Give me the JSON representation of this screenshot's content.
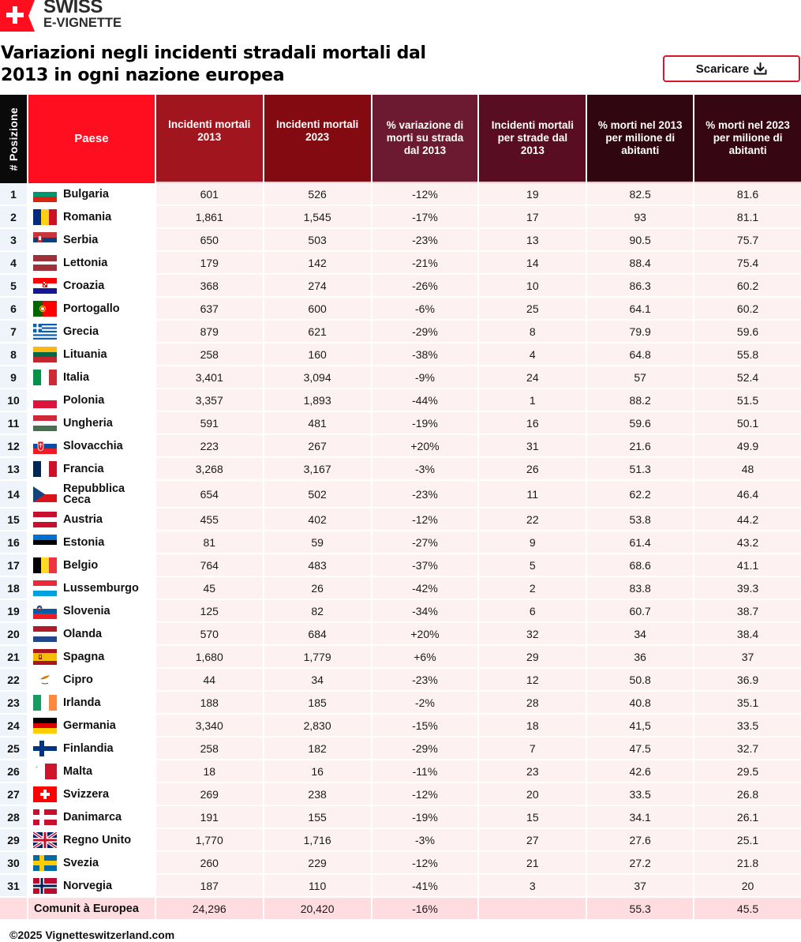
{
  "brand": {
    "line1": "SWISS",
    "line2": "E-VIGNETTE",
    "icon": "swiss-flag-icon",
    "color": "#ff0e1f"
  },
  "title": "Variazioni negli incidenti stradali mortali dal 2013 in ogni nazione europea",
  "download_button": {
    "label": "Scaricare",
    "icon": "download-icon",
    "border_color": "#e0142a"
  },
  "table": {
    "headers": [
      "# Posizione",
      "Paese",
      "Incidenti mortali 2013",
      "Incidenti mortali 2023",
      "% variazione di morti su strada dal 2013",
      "Incidenti mortali per strade dal 2013",
      "% morti nel 2013 per milione di abitanti",
      "% morti nel 2023 per milione di abitanti"
    ],
    "header_colors": [
      "#0a0a0a",
      "#ff0e1f",
      "#a1161e",
      "#830a10",
      "#6c1a31",
      "#580d22",
      "#300611",
      "#360613"
    ],
    "rows": [
      {
        "rank": "1",
        "country": "Bulgaria",
        "flag": "bg",
        "d2013": "601",
        "d2023": "526",
        "change": "-12%",
        "rank_change": "19",
        "pm2013": "82.5",
        "pm2023": "81.6"
      },
      {
        "rank": "2",
        "country": "Romania",
        "flag": "ro",
        "d2013": "1,861",
        "d2023": "1,545",
        "change": "-17%",
        "rank_change": "17",
        "pm2013": "93",
        "pm2023": "81.1"
      },
      {
        "rank": "3",
        "country": "Serbia",
        "flag": "rs",
        "d2013": "650",
        "d2023": "503",
        "change": "-23%",
        "rank_change": "13",
        "pm2013": "90.5",
        "pm2023": "75.7"
      },
      {
        "rank": "4",
        "country": "Lettonia",
        "flag": "lv",
        "d2013": "179",
        "d2023": "142",
        "change": "-21%",
        "rank_change": "14",
        "pm2013": "88.4",
        "pm2023": "75.4"
      },
      {
        "rank": "5",
        "country": "Croazia",
        "flag": "hr",
        "d2013": "368",
        "d2023": "274",
        "change": "-26%",
        "rank_change": "10",
        "pm2013": "86.3",
        "pm2023": "60.2"
      },
      {
        "rank": "6",
        "country": "Portogallo",
        "flag": "pt",
        "d2013": "637",
        "d2023": "600",
        "change": "-6%",
        "rank_change": "25",
        "pm2013": "64.1",
        "pm2023": "60.2"
      },
      {
        "rank": "7",
        "country": "Grecia",
        "flag": "gr",
        "d2013": "879",
        "d2023": "621",
        "change": "-29%",
        "rank_change": "8",
        "pm2013": "79.9",
        "pm2023": "59.6"
      },
      {
        "rank": "8",
        "country": "Lituania",
        "flag": "lt",
        "d2013": "258",
        "d2023": "160",
        "change": "-38%",
        "rank_change": "4",
        "pm2013": "64.8",
        "pm2023": "55.8"
      },
      {
        "rank": "9",
        "country": "Italia",
        "flag": "it",
        "d2013": "3,401",
        "d2023": "3,094",
        "change": "-9%",
        "rank_change": "24",
        "pm2013": "57",
        "pm2023": "52.4"
      },
      {
        "rank": "10",
        "country": "Polonia",
        "flag": "pl",
        "d2013": "3,357",
        "d2023": "1,893",
        "change": "-44%",
        "rank_change": "1",
        "pm2013": "88.2",
        "pm2023": "51.5"
      },
      {
        "rank": "11",
        "country": "Ungheria",
        "flag": "hu",
        "d2013": "591",
        "d2023": "481",
        "change": "-19%",
        "rank_change": "16",
        "pm2013": "59.6",
        "pm2023": "50.1"
      },
      {
        "rank": "12",
        "country": "Slovacchia",
        "flag": "sk",
        "d2013": "223",
        "d2023": "267",
        "change": "+20%",
        "rank_change": "31",
        "pm2013": "21.6",
        "pm2023": "49.9"
      },
      {
        "rank": "13",
        "country": "Francia",
        "flag": "fr",
        "d2013": "3,268",
        "d2023": "3,167",
        "change": "-3%",
        "rank_change": "26",
        "pm2013": "51.3",
        "pm2023": "48"
      },
      {
        "rank": "14",
        "country": "Repubblica Ceca",
        "flag": "cz",
        "d2013": "654",
        "d2023": "502",
        "change": "-23%",
        "rank_change": "11",
        "pm2013": "62.2",
        "pm2023": "46.4"
      },
      {
        "rank": "15",
        "country": "Austria",
        "flag": "at",
        "d2013": "455",
        "d2023": "402",
        "change": "-12%",
        "rank_change": "22",
        "pm2013": "53.8",
        "pm2023": "44.2"
      },
      {
        "rank": "16",
        "country": "Estonia",
        "flag": "ee",
        "d2013": "81",
        "d2023": "59",
        "change": "-27%",
        "rank_change": "9",
        "pm2013": "61.4",
        "pm2023": "43.2"
      },
      {
        "rank": "17",
        "country": "Belgio",
        "flag": "be",
        "d2013": "764",
        "d2023": "483",
        "change": "-37%",
        "rank_change": "5",
        "pm2013": "68.6",
        "pm2023": "41.1"
      },
      {
        "rank": "18",
        "country": "Lussemburgo",
        "flag": "lu",
        "d2013": "45",
        "d2023": "26",
        "change": "-42%",
        "rank_change": "2",
        "pm2013": "83.8",
        "pm2023": "39.3"
      },
      {
        "rank": "19",
        "country": "Slovenia",
        "flag": "si",
        "d2013": "125",
        "d2023": "82",
        "change": "-34%",
        "rank_change": "6",
        "pm2013": "60.7",
        "pm2023": "38.7"
      },
      {
        "rank": "20",
        "country": "Olanda",
        "flag": "nl",
        "d2013": "570",
        "d2023": "684",
        "change": "+20%",
        "rank_change": "32",
        "pm2013": "34",
        "pm2023": "38.4"
      },
      {
        "rank": "21",
        "country": "Spagna",
        "flag": "es",
        "d2013": "1,680",
        "d2023": "1,779",
        "change": "+6%",
        "rank_change": "29",
        "pm2013": "36",
        "pm2023": "37"
      },
      {
        "rank": "22",
        "country": "Cipro",
        "flag": "cy",
        "d2013": "44",
        "d2023": "34",
        "change": "-23%",
        "rank_change": "12",
        "pm2013": "50.8",
        "pm2023": "36.9"
      },
      {
        "rank": "23",
        "country": "Irlanda",
        "flag": "ie",
        "d2013": "188",
        "d2023": "185",
        "change": "-2%",
        "rank_change": "28",
        "pm2013": "40.8",
        "pm2023": "35.1"
      },
      {
        "rank": "24",
        "country": "Germania",
        "flag": "de",
        "d2013": "3,340",
        "d2023": "2,830",
        "change": "-15%",
        "rank_change": "18",
        "pm2013": "41,5",
        "pm2023": "33.5"
      },
      {
        "rank": "25",
        "country": "Finlandia",
        "flag": "fi",
        "d2013": "258",
        "d2023": "182",
        "change": "-29%",
        "rank_change": "7",
        "pm2013": "47.5",
        "pm2023": "32.7"
      },
      {
        "rank": "26",
        "country": "Malta",
        "flag": "mt",
        "d2013": "18",
        "d2023": "16",
        "change": "-11%",
        "rank_change": "23",
        "pm2013": "42.6",
        "pm2023": "29.5"
      },
      {
        "rank": "27",
        "country": "Svizzera",
        "flag": "ch",
        "d2013": "269",
        "d2023": "238",
        "change": "-12%",
        "rank_change": "20",
        "pm2013": "33.5",
        "pm2023": "26.8"
      },
      {
        "rank": "28",
        "country": "Danimarca",
        "flag": "dk",
        "d2013": "191",
        "d2023": "155",
        "change": "-19%",
        "rank_change": "15",
        "pm2013": "34.1",
        "pm2023": "26.1"
      },
      {
        "rank": "29",
        "country": "Regno Unito",
        "flag": "gb",
        "d2013": "1,770",
        "d2023": "1,716",
        "change": "-3%",
        "rank_change": "27",
        "pm2013": "27.6",
        "pm2023": "25.1"
      },
      {
        "rank": "30",
        "country": "Svezia",
        "flag": "se",
        "d2013": "260",
        "d2023": "229",
        "change": "-12%",
        "rank_change": "21",
        "pm2013": "27.2",
        "pm2023": "21.8"
      },
      {
        "rank": "31",
        "country": "Norvegia",
        "flag": "no",
        "d2013": "187",
        "d2023": "110",
        "change": "-41%",
        "rank_change": "3",
        "pm2013": "37",
        "pm2023": "20"
      }
    ],
    "total": {
      "rank": "",
      "country": "Comunit à Europea",
      "d2013": "24,296",
      "d2023": "20,420",
      "change": "-16%",
      "rank_change": "",
      "pm2013": "55.3",
      "pm2023": "45.5"
    }
  },
  "footer": "©2025 Vignetteswitzerland.com"
}
